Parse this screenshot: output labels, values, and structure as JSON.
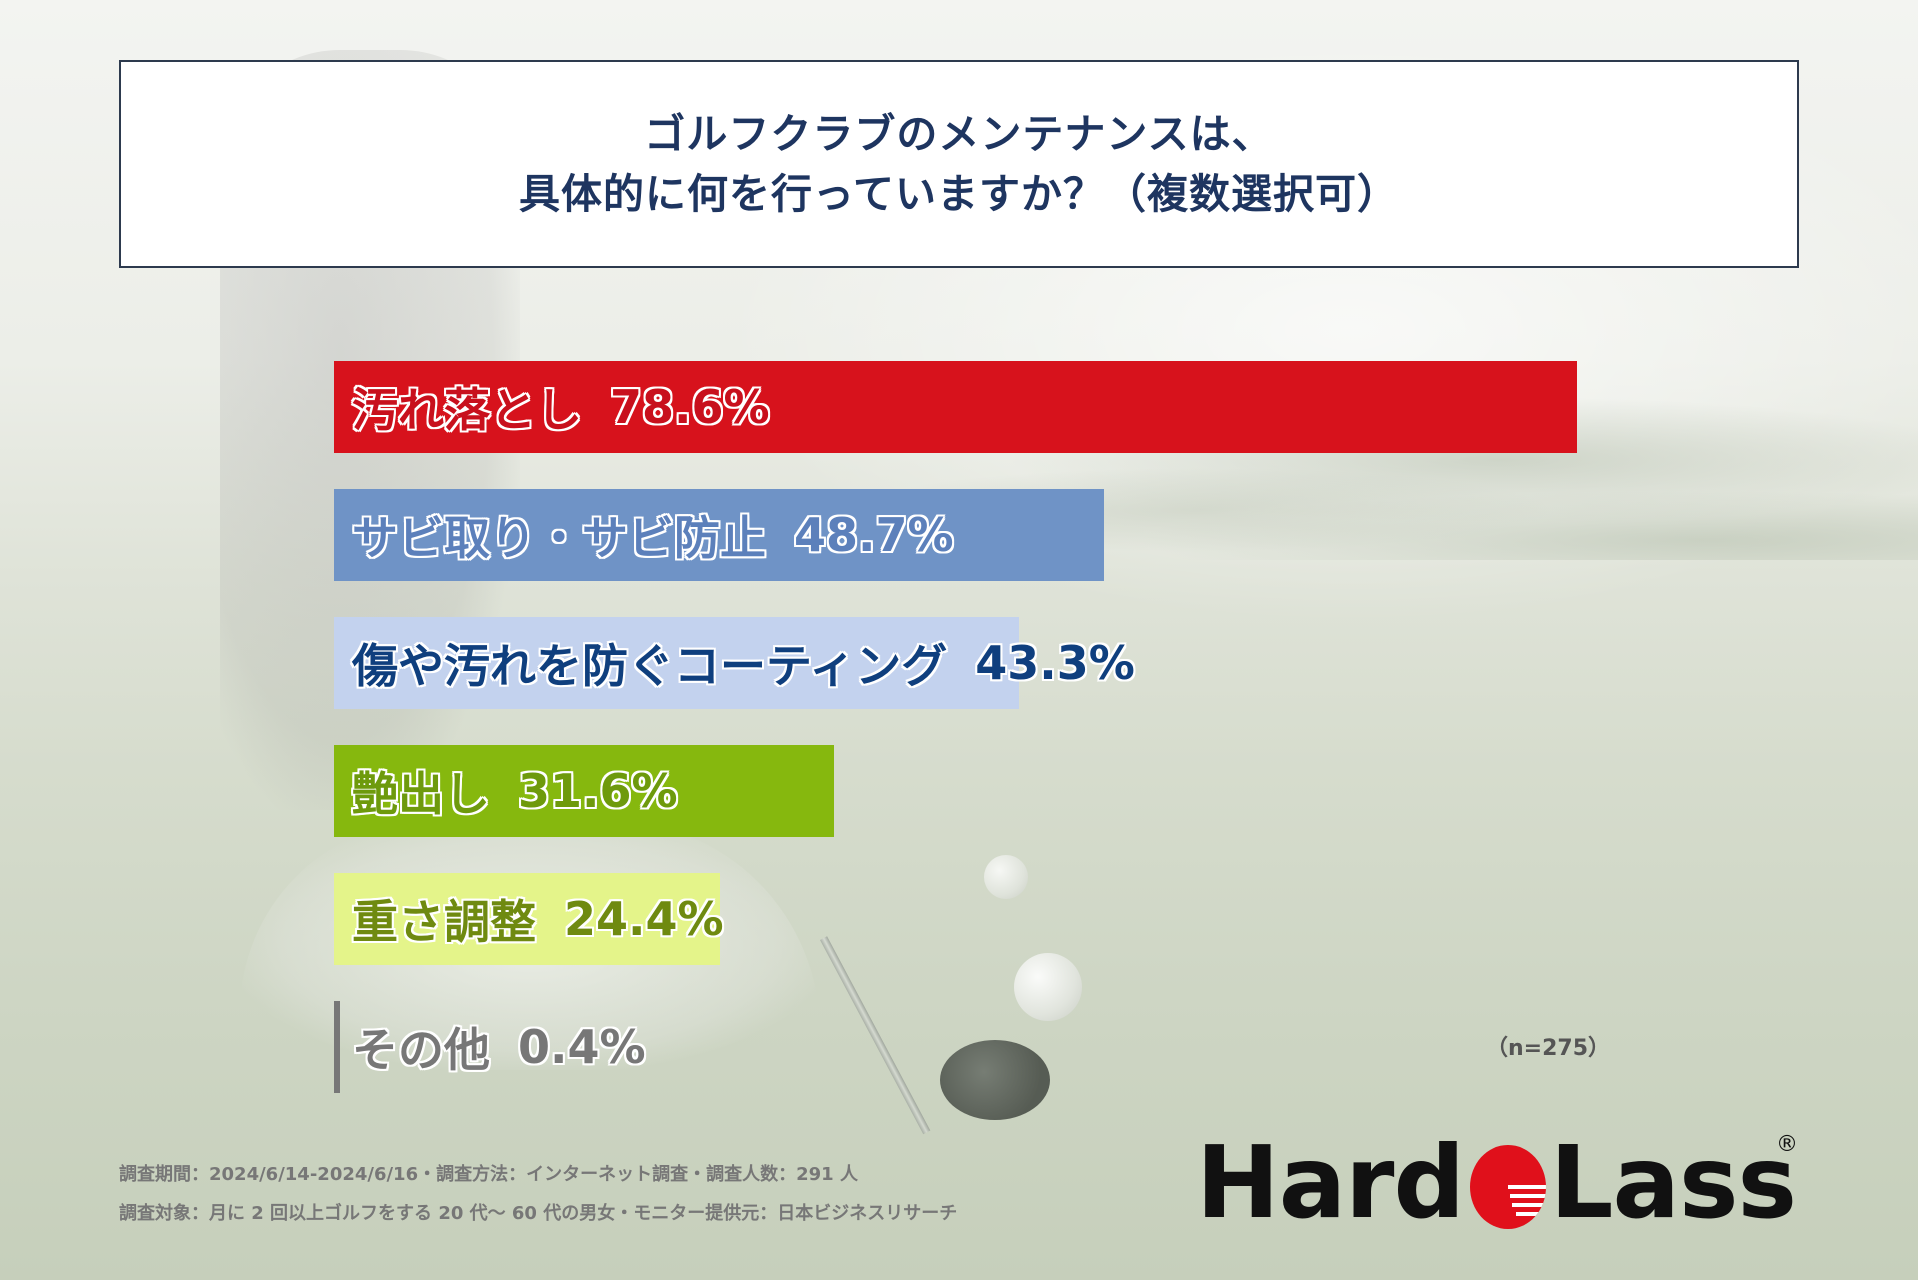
{
  "title": {
    "line1": "ゴルフクラブのメンテナンスは、",
    "line2": "具体的に何を行っていますか？（複数選択可）"
  },
  "chart_data": {
    "type": "bar",
    "orientation": "horizontal",
    "categories": [
      "汚れ落とし",
      "サビ取り・サビ防止",
      "傷や汚れを防ぐコーティング",
      "艶出し",
      "重さ調整",
      "その他"
    ],
    "values": [
      78.6,
      48.7,
      43.3,
      31.6,
      24.4,
      0.4
    ],
    "value_labels": [
      "78.6%",
      "48.7%",
      "43.3%",
      "31.6%",
      "24.4%",
      "0.4%"
    ],
    "colors": [
      "#d7121c",
      "#6f93c6",
      "#c3d2ee",
      "#86b80e",
      "#e4f48a",
      "#777777"
    ],
    "unit": "%",
    "xlim": [
      0,
      100
    ],
    "grid": false,
    "legend": false,
    "sample_size": "（n=275）"
  },
  "footnotes": {
    "line1": "調査期間：2024/6/14-2024/6/16・調査方法：インターネット調査・調査人数：291 人",
    "line2": "調査対象：月に 2 回以上ゴルフをする 20 代〜 60 代の男女・モニター提供元：日本ビジネスリサーチ"
  },
  "logo": {
    "part1": "Hard",
    "part2": "Lass",
    "registered": "®",
    "accent_color": "#e0101b"
  }
}
